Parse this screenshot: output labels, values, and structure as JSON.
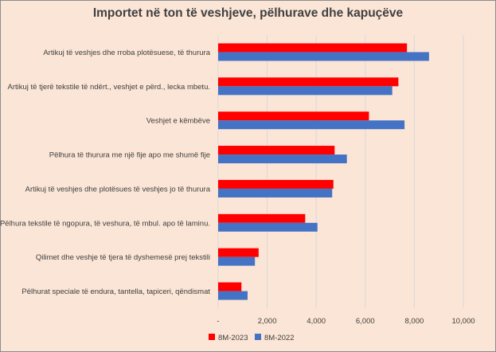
{
  "chart_data": {
    "type": "bar",
    "orientation": "horizontal",
    "title": "Importet në ton të veshjeve, pëlhurave dhe kapuçëve",
    "categories": [
      "Artikuj të veshjes dhe rroba plotësuese, të thurura",
      "Artikuj të tjerë tekstile të ndërt., veshjet e përd., lecka mbetu.",
      "Veshjet e këmbëve",
      "Pëlhura të thurura me një fije apo me shumë fije",
      "Artikuj të veshjes dhe plotësues të veshjes jo të thurura",
      "Pëlhura tekstile të ngopura, të veshura, të mbul. apo të laminu.",
      "Qilimet dhe veshje të tjera të dyshemesë prej tekstili",
      "Pëlhurat speciale të endura, tantella, tapiceri, qëndismat"
    ],
    "series": [
      {
        "name": "8M-2023",
        "color": "#ff0000",
        "values": [
          7700,
          7350,
          6150,
          4750,
          4700,
          3550,
          1650,
          950
        ]
      },
      {
        "name": "8M-2022",
        "color": "#4472c4",
        "values": [
          8600,
          7100,
          7600,
          5250,
          4650,
          4050,
          1500,
          1200
        ]
      }
    ],
    "xlim": [
      0,
      10000
    ],
    "xticks": [
      "-",
      "2,000",
      "4,000",
      "6,000",
      "8,000",
      "10,000"
    ],
    "grid": "vertical",
    "legend": "bottom"
  }
}
